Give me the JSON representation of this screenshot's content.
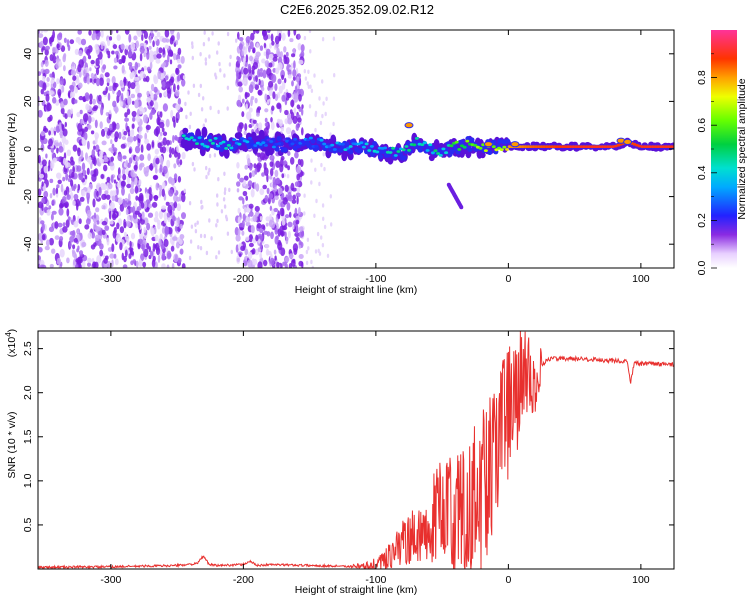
{
  "figure_title": "C2E6.2025.352.09.02.R12",
  "chart_data": [
    {
      "type": "heatmap",
      "xlabel": "Height of straight line (km)",
      "ylabel": "Frequency (Hz)",
      "xlim": [
        -355,
        125
      ],
      "ylim": [
        -50,
        50
      ],
      "xticks": [
        -300,
        -200,
        -100,
        0,
        100
      ],
      "xtick_labels": [
        "-300",
        "-200",
        "-100",
        "0",
        "100"
      ],
      "yticks": [
        -40,
        -20,
        0,
        20,
        40
      ],
      "ytick_labels": [
        "-40",
        "-20",
        "0",
        "20",
        "40"
      ],
      "colorbar": {
        "label": "Normalized spectral amplitude",
        "range": [
          0,
          1
        ],
        "ticks": [
          0.0,
          0.2,
          0.4,
          0.6,
          0.8
        ],
        "tick_labels": [
          "0.0",
          "0.2",
          "0.4",
          "0.6",
          "0.8"
        ]
      },
      "noise_bands_km": [
        [
          -355,
          -245
        ],
        [
          -205,
          -155
        ]
      ],
      "signal_ridge": {
        "x": [
          -245,
          -230,
          -210,
          -190,
          -170,
          -150,
          -130,
          -110,
          -95,
          -80,
          -70,
          -60,
          -50,
          -40,
          -30,
          -20,
          -10,
          0,
          20,
          50,
          80,
          90,
          100,
          125
        ],
        "frequency": [
          4,
          3,
          2,
          3,
          2,
          3,
          1,
          1,
          -1,
          -2,
          3,
          0,
          -1,
          1,
          2,
          1,
          1,
          1,
          1,
          1,
          1,
          3,
          1,
          1
        ],
        "amplitude": [
          0.45,
          0.5,
          0.45,
          0.35,
          0.3,
          0.35,
          0.4,
          0.45,
          0.45,
          0.5,
          0.55,
          0.5,
          0.5,
          0.6,
          0.65,
          0.7,
          0.75,
          0.8,
          0.85,
          0.9,
          0.9,
          0.85,
          0.9,
          0.9
        ]
      },
      "side_branch": {
        "x": [
          -45,
          -35
        ],
        "frequency": [
          -15,
          -25
        ]
      }
    },
    {
      "type": "line",
      "xlabel": "Height of straight line (km)",
      "ylabel": "SNR (10 * v/v)",
      "y_scale_label": "(x10",
      "y_scale_exponent": "4",
      "y_multiplier": 10000,
      "xlim": [
        -355,
        125
      ],
      "ylim": [
        0,
        27000
      ],
      "xticks": [
        -300,
        -200,
        -100,
        0,
        100
      ],
      "xtick_labels": [
        "-300",
        "-200",
        "-100",
        "0",
        "100"
      ],
      "yticks": [
        5000,
        10000,
        15000,
        20000,
        25000
      ],
      "ytick_labels": [
        "0.5",
        "1.0",
        "1.5",
        "2.0",
        "2.5"
      ],
      "color": "#e8302e",
      "series": [
        {
          "name": "SNR",
          "x": [
            -355,
            -300,
            -250,
            -235,
            -230,
            -226,
            -220,
            -200,
            -195,
            -190,
            -180,
            -150,
            -120,
            -100,
            -90,
            -80,
            -70,
            -60,
            -50,
            -40,
            -30,
            -20,
            -15,
            -10,
            -5,
            0,
            5,
            10,
            15,
            20,
            25,
            30,
            40,
            60,
            80,
            90,
            92,
            95,
            100,
            125
          ],
          "y": [
            200,
            250,
            400,
            600,
            1500,
            500,
            400,
            500,
            900,
            400,
            500,
            400,
            300,
            500,
            1500,
            3000,
            3500,
            5000,
            6000,
            7000,
            8000,
            9000,
            11000,
            13500,
            15000,
            17000,
            19000,
            21500,
            22500,
            21000,
            23000,
            23800,
            23900,
            23800,
            23600,
            23500,
            21000,
            23400,
            23300,
            23200
          ]
        }
      ],
      "noise_amplitude": {
        "x": [
          -130,
          -110,
          -100,
          -90,
          -80,
          -70,
          -60,
          -50,
          -40,
          -30,
          -20,
          -10,
          0,
          10,
          20,
          30,
          125
        ],
        "y": [
          0,
          300,
          800,
          1500,
          2500,
          3500,
          5000,
          6500,
          7500,
          8500,
          9500,
          9000,
          8500,
          6000,
          3500,
          1000,
          600
        ]
      }
    }
  ]
}
